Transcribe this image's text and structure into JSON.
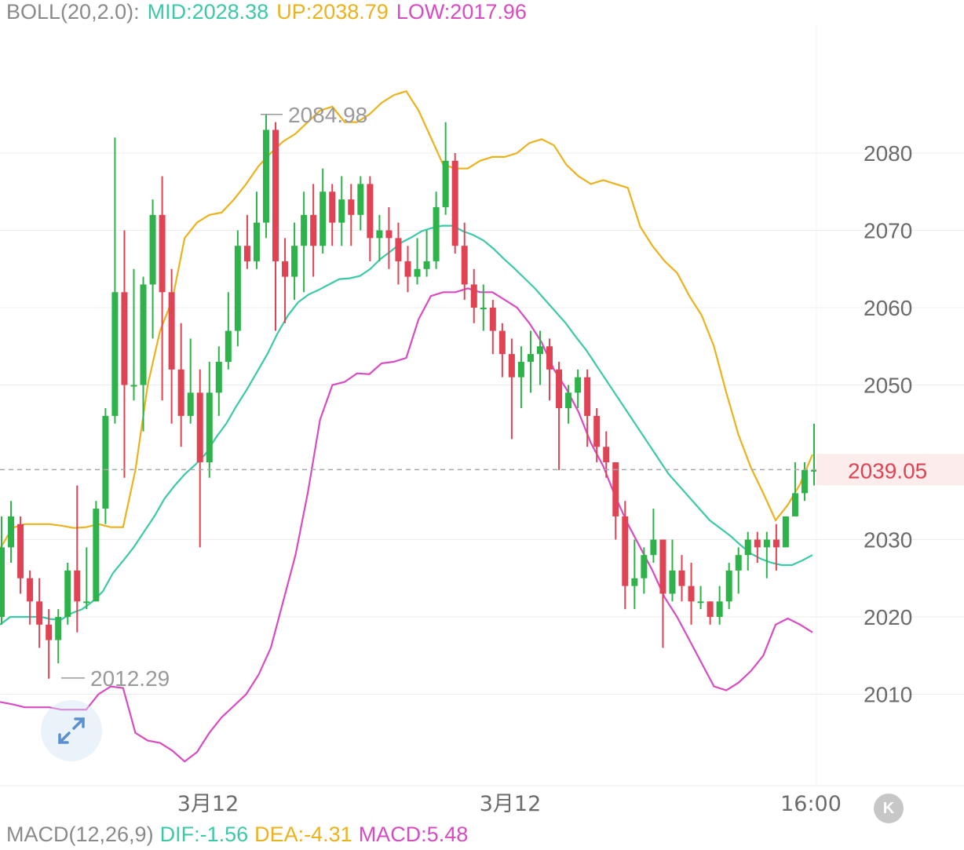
{
  "boll": {
    "label": "BOLL(20,2.0):",
    "mid": "MID:2028.38",
    "up": "UP:2038.79",
    "low": "LOW:2017.96"
  },
  "macd": {
    "label": "MACD(12,26,9)",
    "dif": "DIF:-1.56",
    "dea": "DEA:-4.31",
    "macd": "MACD:5.48"
  },
  "colors": {
    "up_candle": "#2db34a",
    "down_candle": "#e04354",
    "mid_line": "#3cc9a8",
    "upper_line": "#ebb21c",
    "lower_line": "#d94bc0",
    "grid": "#ececec",
    "axis_text": "#6b6b6b",
    "price_tag_bg": "#fdecec",
    "price_tag_text": "#e04354"
  },
  "icons": {
    "expand": "expand-arrows-icon",
    "k": "k-line-icon"
  },
  "chart_data": {
    "type": "candlestick",
    "y_ticks": [
      2080,
      2070,
      2060,
      2050,
      2030,
      2020,
      2010
    ],
    "ylim": [
      2000,
      2100
    ],
    "x_labels": [
      "3月12",
      "3月12",
      "16:00"
    ],
    "high_annotation": "2084.98",
    "low_annotation": "2012.29",
    "last_price": "2039.05",
    "grid": true,
    "candles": [
      [
        2020,
        2029,
        2019,
        2033
      ],
      [
        2029,
        2033,
        2027,
        2035
      ],
      [
        2032,
        2025,
        2023,
        2033
      ],
      [
        2025,
        2022,
        2019,
        2026
      ],
      [
        2022,
        2019,
        2016,
        2025
      ],
      [
        2019,
        2017,
        2012,
        2021
      ],
      [
        2017,
        2020,
        2014,
        2021
      ],
      [
        2020,
        2026,
        2019,
        2027
      ],
      [
        2026,
        2022,
        2018,
        2037
      ],
      [
        2022,
        2022,
        2021,
        2029
      ],
      [
        2022,
        2034,
        2022,
        2035
      ],
      [
        2034,
        2046,
        2032,
        2047
      ],
      [
        2046,
        2062,
        2045,
        2082
      ],
      [
        2062,
        2050,
        2038,
        2070
      ],
      [
        2050,
        2050,
        2048,
        2065
      ],
      [
        2050,
        2063,
        2044,
        2064
      ],
      [
        2063,
        2072,
        2056,
        2074
      ],
      [
        2072,
        2062,
        2048,
        2077
      ],
      [
        2062,
        2052,
        2045,
        2065
      ],
      [
        2052,
        2046,
        2042,
        2058
      ],
      [
        2046,
        2049,
        2045,
        2056
      ],
      [
        2049,
        2040,
        2029,
        2052
      ],
      [
        2040,
        2049,
        2038,
        2053
      ],
      [
        2049,
        2053,
        2046,
        2055
      ],
      [
        2053,
        2057,
        2052,
        2062
      ],
      [
        2057,
        2068,
        2055,
        2070
      ],
      [
        2068,
        2066,
        2065,
        2072
      ],
      [
        2066,
        2071,
        2065,
        2075
      ],
      [
        2071,
        2083,
        2069,
        2085
      ],
      [
        2083,
        2066,
        2057,
        2084
      ],
      [
        2066,
        2064,
        2058,
        2069
      ],
      [
        2064,
        2068,
        2061,
        2071
      ],
      [
        2068,
        2072,
        2062,
        2075
      ],
      [
        2072,
        2068,
        2064,
        2076
      ],
      [
        2068,
        2075,
        2067,
        2078
      ],
      [
        2075,
        2071,
        2068,
        2076
      ],
      [
        2071,
        2074,
        2068,
        2077
      ],
      [
        2074,
        2072,
        2068,
        2076
      ],
      [
        2072,
        2076,
        2070,
        2077
      ],
      [
        2076,
        2069,
        2066,
        2077
      ],
      [
        2069,
        2070,
        2066,
        2072
      ],
      [
        2070,
        2069,
        2065,
        2073
      ],
      [
        2069,
        2066,
        2063,
        2071
      ],
      [
        2066,
        2064,
        2062,
        2068
      ],
      [
        2064,
        2065,
        2063,
        2069
      ],
      [
        2065,
        2066,
        2064,
        2070
      ],
      [
        2066,
        2073,
        2065,
        2075
      ],
      [
        2073,
        2079,
        2072,
        2084
      ],
      [
        2079,
        2068,
        2067,
        2080
      ],
      [
        2068,
        2063,
        2061,
        2071
      ],
      [
        2063,
        2060,
        2058,
        2065
      ],
      [
        2060,
        2060,
        2057,
        2063
      ],
      [
        2060,
        2057,
        2054,
        2061
      ],
      [
        2057,
        2054,
        2051,
        2058
      ],
      [
        2054,
        2051,
        2043,
        2056
      ],
      [
        2051,
        2053,
        2047,
        2055
      ],
      [
        2053,
        2054,
        2049,
        2057
      ],
      [
        2054,
        2055,
        2050,
        2057
      ],
      [
        2055,
        2052,
        2048,
        2056
      ],
      [
        2052,
        2047,
        2039,
        2053
      ],
      [
        2047,
        2049,
        2045,
        2050
      ],
      [
        2049,
        2051,
        2047,
        2052
      ],
      [
        2051,
        2046,
        2042,
        2052
      ],
      [
        2046,
        2042,
        2040,
        2047
      ],
      [
        2042,
        2040,
        2038,
        2044
      ],
      [
        2040,
        2033,
        2030,
        2040
      ],
      [
        2033,
        2024,
        2021,
        2035
      ],
      [
        2024,
        2025,
        2021,
        2030
      ],
      [
        2025,
        2028,
        2023,
        2029
      ],
      [
        2028,
        2030,
        2027,
        2034
      ],
      [
        2030,
        2023,
        2016,
        2030
      ],
      [
        2023,
        2026,
        2022,
        2030
      ],
      [
        2026,
        2024,
        2022,
        2028
      ],
      [
        2024,
        2022,
        2019,
        2027
      ],
      [
        2022,
        2022,
        2021,
        2024
      ],
      [
        2022,
        2020,
        2019,
        2022
      ],
      [
        2020,
        2022,
        2019,
        2024
      ],
      [
        2022,
        2026,
        2021,
        2027
      ],
      [
        2026,
        2028,
        2023,
        2029
      ],
      [
        2028,
        2030,
        2026,
        2031
      ],
      [
        2030,
        2029,
        2027,
        2031
      ],
      [
        2029,
        2030,
        2025,
        2031
      ],
      [
        2030,
        2029,
        2026,
        2032
      ],
      [
        2029,
        2033,
        2029,
        2033
      ],
      [
        2033,
        2036,
        2033,
        2040
      ],
      [
        2036,
        2039,
        2035,
        2040
      ],
      [
        2039,
        2039,
        2037,
        2045
      ]
    ],
    "mid_line": [
      2019.0,
      2020.0,
      2020.0,
      2020.0,
      2020.0,
      2019.7,
      2019.7,
      2020.5,
      2021.0,
      2022.0,
      2023.3,
      2025.7,
      2027.3,
      2029.0,
      2031.0,
      2033.0,
      2035.3,
      2037.0,
      2038.5,
      2039.7,
      2041.1,
      2043.2,
      2045.0,
      2047.3,
      2049.4,
      2051.7,
      2054.0,
      2056.7,
      2059.0,
      2060.7,
      2061.7,
      2062.3,
      2063.0,
      2063.7,
      2063.8,
      2064.1,
      2065.0,
      2066.3,
      2067.3,
      2068.4,
      2069.1,
      2069.9,
      2070.3,
      2070.6,
      2070.6,
      2069.9,
      2069.4,
      2068.7,
      2067.6,
      2066.3,
      2065.1,
      2063.8,
      2062.5,
      2061.0,
      2059.5,
      2058.0,
      2056.2,
      2054.5,
      2052.5,
      2050.5,
      2048.5,
      2046.5,
      2044.5,
      2042.5,
      2040.5,
      2038.5,
      2037.0,
      2035.5,
      2034.0,
      2032.5,
      2031.5,
      2030.5,
      2029.3,
      2028.2,
      2027.5,
      2027.0,
      2026.7,
      2026.7,
      2027.3,
      2028.0
    ],
    "upper_line": [
      2028.8,
      2031.5,
      2032.0,
      2032.0,
      2032.0,
      2031.8,
      2031.5,
      2031.6,
      2032.0,
      2031.6,
      2031.6,
      2039.0,
      2050.0,
      2057.0,
      2061.0,
      2069.0,
      2071.0,
      2072.0,
      2072.3,
      2074.0,
      2076.0,
      2078.3,
      2080.0,
      2081.5,
      2082.5,
      2084.0,
      2085.5,
      2086.0,
      2084.0,
      2084.0,
      2085.0,
      2086.5,
      2087.5,
      2088.0,
      2085.5,
      2082.0,
      2078.5,
      2078.0,
      2078.0,
      2079.0,
      2079.5,
      2079.5,
      2080.0,
      2081.3,
      2081.8,
      2081.0,
      2078.5,
      2077.0,
      2076.0,
      2076.5,
      2076.0,
      2075.5,
      2070.5,
      2068.0,
      2066.0,
      2064.5,
      2061.5,
      2059.0,
      2055.0,
      2049.0,
      2043.5,
      2039.3,
      2036.0,
      2032.5,
      2034.5,
      2037.2,
      2041.0
    ],
    "lower_line": [
      2009.0,
      2008.7,
      2008.3,
      2008.3,
      2008.3,
      2008.0,
      2008.0,
      2008.0,
      2010.0,
      2011.0,
      2010.8,
      2005.0,
      2004.0,
      2003.7,
      2002.7,
      2001.3,
      2002.5,
      2005.0,
      2007.0,
      2008.5,
      2010.0,
      2012.5,
      2016.0,
      2022.0,
      2028.0,
      2036.0,
      2045.5,
      2050.0,
      2050.4,
      2051.5,
      2051.4,
      2052.8,
      2053.0,
      2053.5,
      2058.5,
      2061.5,
      2062.0,
      2062.0,
      2062.5,
      2062.0,
      2062.0,
      2061.0,
      2060.0,
      2058.0,
      2055.5,
      2052.0,
      2049.5,
      2046.5,
      2042.5,
      2039.5,
      2035.5,
      2032.0,
      2029.0,
      2026.0,
      2022.5,
      2020.0,
      2017.0,
      2014.0,
      2011.0,
      2010.5,
      2011.5,
      2013.0,
      2015.0,
      2019.0,
      2019.8,
      2019.0,
      2018.0
    ]
  }
}
